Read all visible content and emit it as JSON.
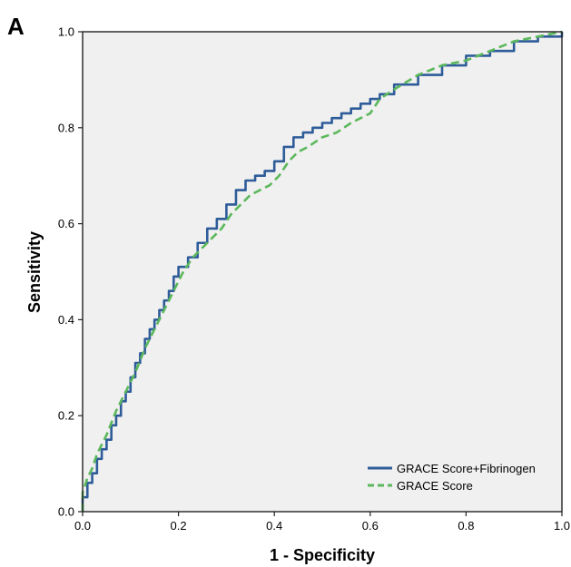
{
  "panel_label": "A",
  "chart_data": {
    "type": "line",
    "title": "",
    "xlabel": "1 - Specificity",
    "ylabel": "Sensitivity",
    "xlim": [
      0,
      1
    ],
    "ylim": [
      0,
      1
    ],
    "xticks": [
      "0.0",
      "0.2",
      "0.4",
      "0.6",
      "0.8",
      "1.0"
    ],
    "yticks": [
      "0.0",
      "0.2",
      "0.4",
      "0.6",
      "0.8",
      "1.0"
    ],
    "grid": false,
    "background": "#f0f0f0",
    "legend_position": "bottom-right",
    "series": [
      {
        "name": "GRACE Score+Fibrinogen",
        "color": "#2e5c99",
        "style": "solid",
        "x": [
          0,
          0,
          0.01,
          0.02,
          0.03,
          0.04,
          0.05,
          0.06,
          0.07,
          0.08,
          0.09,
          0.1,
          0.11,
          0.12,
          0.13,
          0.14,
          0.15,
          0.16,
          0.17,
          0.18,
          0.19,
          0.2,
          0.22,
          0.24,
          0.26,
          0.28,
          0.3,
          0.32,
          0.34,
          0.36,
          0.38,
          0.4,
          0.42,
          0.44,
          0.46,
          0.48,
          0.5,
          0.52,
          0.54,
          0.56,
          0.58,
          0.6,
          0.62,
          0.65,
          0.7,
          0.75,
          0.8,
          0.85,
          0.9,
          0.95,
          1.0
        ],
        "y": [
          0,
          0.03,
          0.06,
          0.08,
          0.11,
          0.13,
          0.15,
          0.18,
          0.2,
          0.23,
          0.25,
          0.28,
          0.31,
          0.33,
          0.36,
          0.38,
          0.4,
          0.42,
          0.44,
          0.46,
          0.49,
          0.51,
          0.53,
          0.56,
          0.59,
          0.61,
          0.64,
          0.67,
          0.69,
          0.7,
          0.71,
          0.73,
          0.76,
          0.78,
          0.79,
          0.8,
          0.81,
          0.82,
          0.83,
          0.84,
          0.85,
          0.86,
          0.87,
          0.89,
          0.91,
          0.93,
          0.95,
          0.96,
          0.98,
          0.99,
          1.0
        ]
      },
      {
        "name": "GRACE Score",
        "color": "#5cb85c",
        "style": "dashed",
        "x": [
          0,
          0,
          0.01,
          0.02,
          0.03,
          0.05,
          0.07,
          0.09,
          0.11,
          0.13,
          0.15,
          0.17,
          0.19,
          0.21,
          0.23,
          0.25,
          0.27,
          0.29,
          0.31,
          0.33,
          0.35,
          0.37,
          0.39,
          0.41,
          0.43,
          0.45,
          0.47,
          0.5,
          0.53,
          0.56,
          0.58,
          0.6,
          0.62,
          0.65,
          0.7,
          0.75,
          0.8,
          0.85,
          0.9,
          0.95,
          1.0
        ],
        "y": [
          0,
          0.04,
          0.07,
          0.09,
          0.12,
          0.16,
          0.21,
          0.25,
          0.29,
          0.34,
          0.38,
          0.42,
          0.46,
          0.5,
          0.53,
          0.55,
          0.57,
          0.59,
          0.62,
          0.64,
          0.66,
          0.67,
          0.68,
          0.7,
          0.73,
          0.75,
          0.76,
          0.78,
          0.79,
          0.81,
          0.82,
          0.83,
          0.86,
          0.88,
          0.91,
          0.93,
          0.94,
          0.96,
          0.98,
          0.99,
          1.0
        ]
      }
    ]
  }
}
